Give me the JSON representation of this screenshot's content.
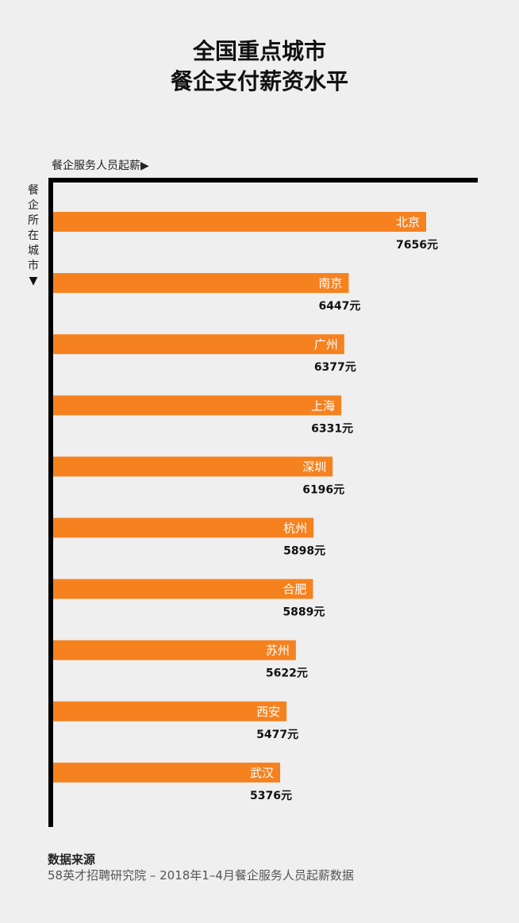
{
  "title": [
    "全国重点城市",
    "餐企支付薪资水平"
  ],
  "chart_data": {
    "type": "bar",
    "orientation": "horizontal",
    "xlabel": "餐企服务人员起薪▶",
    "ylabel": "餐企所在城市",
    "ylabel_arrow": "▼",
    "categories": [
      "北京",
      "南京",
      "广州",
      "上海",
      "深圳",
      "杭州",
      "合肥",
      "苏州",
      "西安",
      "武汉"
    ],
    "values": [
      7656,
      6447,
      6377,
      6331,
      6196,
      5898,
      5889,
      5622,
      5477,
      5376
    ],
    "value_labels": [
      "7656元",
      "6447元",
      "6377元",
      "6331元",
      "6196元",
      "5898元",
      "5889元",
      "5622元",
      "5477元",
      "5376元"
    ],
    "bar_color": "#f5821f",
    "grid": false
  },
  "source": {
    "heading": "数据来源",
    "text": "58英才招聘研究院 – 2018年1–4月餐企服务人员起薪数据"
  }
}
